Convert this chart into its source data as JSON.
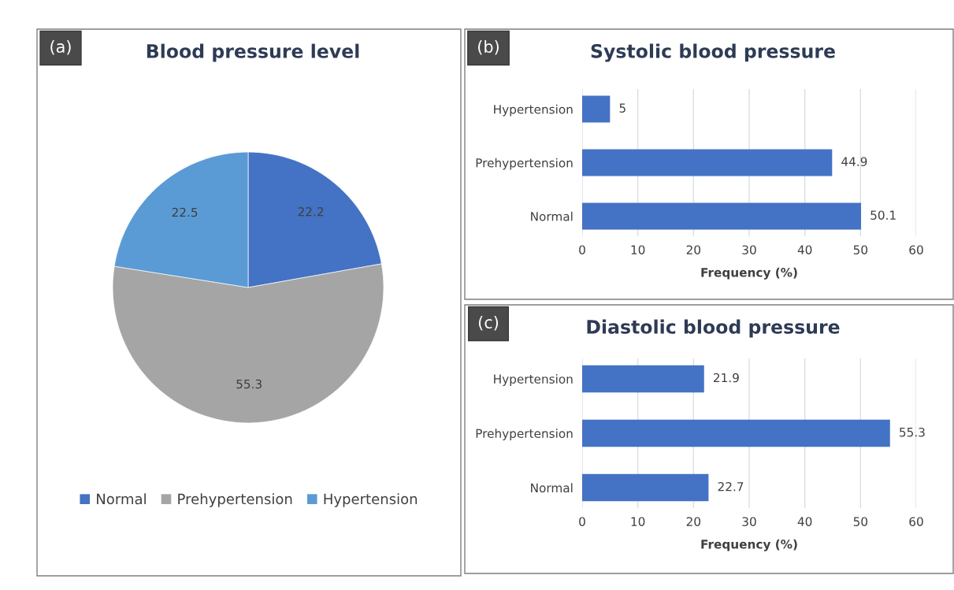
{
  "chart_data": [
    {
      "type": "pie",
      "title": "Blood pressure level",
      "annotations": [
        "(a)"
      ],
      "categories": [
        "Normal",
        "Prehypertension",
        "Hypertension"
      ],
      "values": [
        22.2,
        55.3,
        22.5
      ],
      "colors": [
        "#4472c4",
        "#a5a5a5",
        "#5b9bd5"
      ],
      "data_labels": true,
      "legend": "bottom"
    },
    {
      "type": "bar",
      "orientation": "horizontal",
      "title": "Systolic blood pressure",
      "annotations": [
        "(b)"
      ],
      "xlabel": "Frequency (%)",
      "categories": [
        "Hypertension",
        "Prehypertension",
        "Normal"
      ],
      "values": [
        5,
        44.9,
        50.1
      ],
      "color": "#4472c4",
      "xlim": [
        0,
        60
      ],
      "xticks": [
        0,
        10,
        20,
        30,
        40,
        50,
        60
      ],
      "grid": "x",
      "data_labels": true
    },
    {
      "type": "bar",
      "orientation": "horizontal",
      "title": "Diastolic blood pressure",
      "annotations": [
        "(c)"
      ],
      "xlabel": "Frequency (%)",
      "categories": [
        "Hypertension",
        "Prehypertension",
        "Normal"
      ],
      "values": [
        21.9,
        55.3,
        22.7
      ],
      "color": "#4472c4",
      "xlim": [
        0,
        60
      ],
      "xticks": [
        0,
        10,
        20,
        30,
        40,
        50,
        60
      ],
      "grid": "x",
      "data_labels": true
    }
  ]
}
